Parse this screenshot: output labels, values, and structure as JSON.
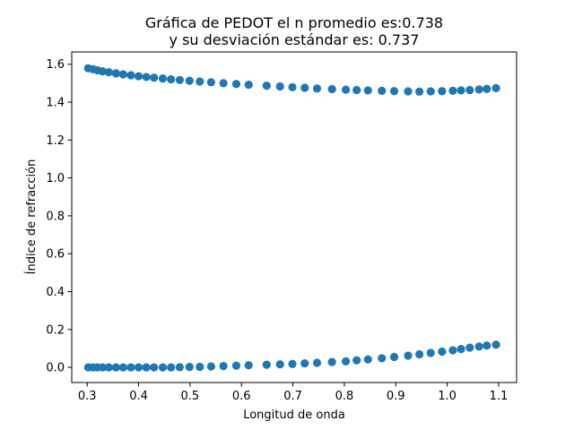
{
  "chart_data": {
    "type": "scatter",
    "title": "Gráfica de PEDOT el n promedio es:0.738",
    "subtitle": "y su desviación estándar es: 0.737",
    "xlabel": "Longitud de onda",
    "ylabel": "Índice de refracción",
    "xlim": [
      0.27,
      1.135
    ],
    "ylim": [
      -0.08,
      1.665
    ],
    "x_ticks": [
      "0.3",
      "0.4",
      "0.5",
      "0.6",
      "0.7",
      "0.8",
      "0.9",
      "1.0",
      "1.1"
    ],
    "y_ticks": [
      "0.0",
      "0.2",
      "0.4",
      "0.6",
      "0.8",
      "1.0",
      "1.2",
      "1.4",
      "1.6"
    ],
    "grid": false,
    "marker_color": "#1f77b4",
    "series": [
      {
        "points": [
          [
            0.302,
            1.579
          ],
          [
            0.311,
            1.574
          ],
          [
            0.32,
            1.568
          ],
          [
            0.33,
            1.563
          ],
          [
            0.342,
            1.558
          ],
          [
            0.356,
            1.552
          ],
          [
            0.37,
            1.547
          ],
          [
            0.385,
            1.542
          ],
          [
            0.4,
            1.537
          ],
          [
            0.415,
            1.533
          ],
          [
            0.43,
            1.529
          ],
          [
            0.447,
            1.525
          ],
          [
            0.463,
            1.521
          ],
          [
            0.48,
            1.517
          ],
          [
            0.499,
            1.513
          ],
          [
            0.519,
            1.509
          ],
          [
            0.541,
            1.505
          ],
          [
            0.565,
            1.5
          ],
          [
            0.59,
            1.496
          ],
          [
            0.614,
            1.492
          ],
          [
            0.649,
            1.487
          ],
          [
            0.675,
            1.483
          ],
          [
            0.699,
            1.479
          ],
          [
            0.723,
            1.476
          ],
          [
            0.747,
            1.472
          ],
          [
            0.776,
            1.469
          ],
          [
            0.803,
            1.466
          ],
          [
            0.824,
            1.464
          ],
          [
            0.846,
            1.462
          ],
          [
            0.873,
            1.46
          ],
          [
            0.897,
            1.458
          ],
          [
            0.924,
            1.457
          ],
          [
            0.946,
            1.456
          ],
          [
            0.968,
            1.457
          ],
          [
            0.99,
            1.458
          ],
          [
            1.011,
            1.46
          ],
          [
            1.027,
            1.462
          ],
          [
            1.044,
            1.464
          ],
          [
            1.062,
            1.467
          ],
          [
            1.077,
            1.47
          ],
          [
            1.095,
            1.474
          ]
        ]
      },
      {
        "points": [
          [
            0.302,
            0.0
          ],
          [
            0.311,
            0.0
          ],
          [
            0.32,
            0.0
          ],
          [
            0.33,
            0.0
          ],
          [
            0.342,
            0.0
          ],
          [
            0.356,
            0.0
          ],
          [
            0.37,
            0.0
          ],
          [
            0.385,
            0.0
          ],
          [
            0.4,
            0.0
          ],
          [
            0.415,
            0.0
          ],
          [
            0.43,
            0.0
          ],
          [
            0.447,
            0.0
          ],
          [
            0.463,
            0.0
          ],
          [
            0.48,
            0.001
          ],
          [
            0.499,
            0.002
          ],
          [
            0.519,
            0.003
          ],
          [
            0.541,
            0.005
          ],
          [
            0.565,
            0.007
          ],
          [
            0.59,
            0.009
          ],
          [
            0.614,
            0.011
          ],
          [
            0.649,
            0.014
          ],
          [
            0.675,
            0.016
          ],
          [
            0.699,
            0.018
          ],
          [
            0.723,
            0.021
          ],
          [
            0.747,
            0.024
          ],
          [
            0.776,
            0.028
          ],
          [
            0.803,
            0.032
          ],
          [
            0.824,
            0.037
          ],
          [
            0.846,
            0.042
          ],
          [
            0.873,
            0.048
          ],
          [
            0.897,
            0.055
          ],
          [
            0.924,
            0.062
          ],
          [
            0.946,
            0.069
          ],
          [
            0.968,
            0.076
          ],
          [
            0.99,
            0.083
          ],
          [
            1.011,
            0.09
          ],
          [
            1.027,
            0.097
          ],
          [
            1.044,
            0.104
          ],
          [
            1.062,
            0.11
          ],
          [
            1.077,
            0.115
          ],
          [
            1.095,
            0.12
          ]
        ]
      }
    ]
  }
}
